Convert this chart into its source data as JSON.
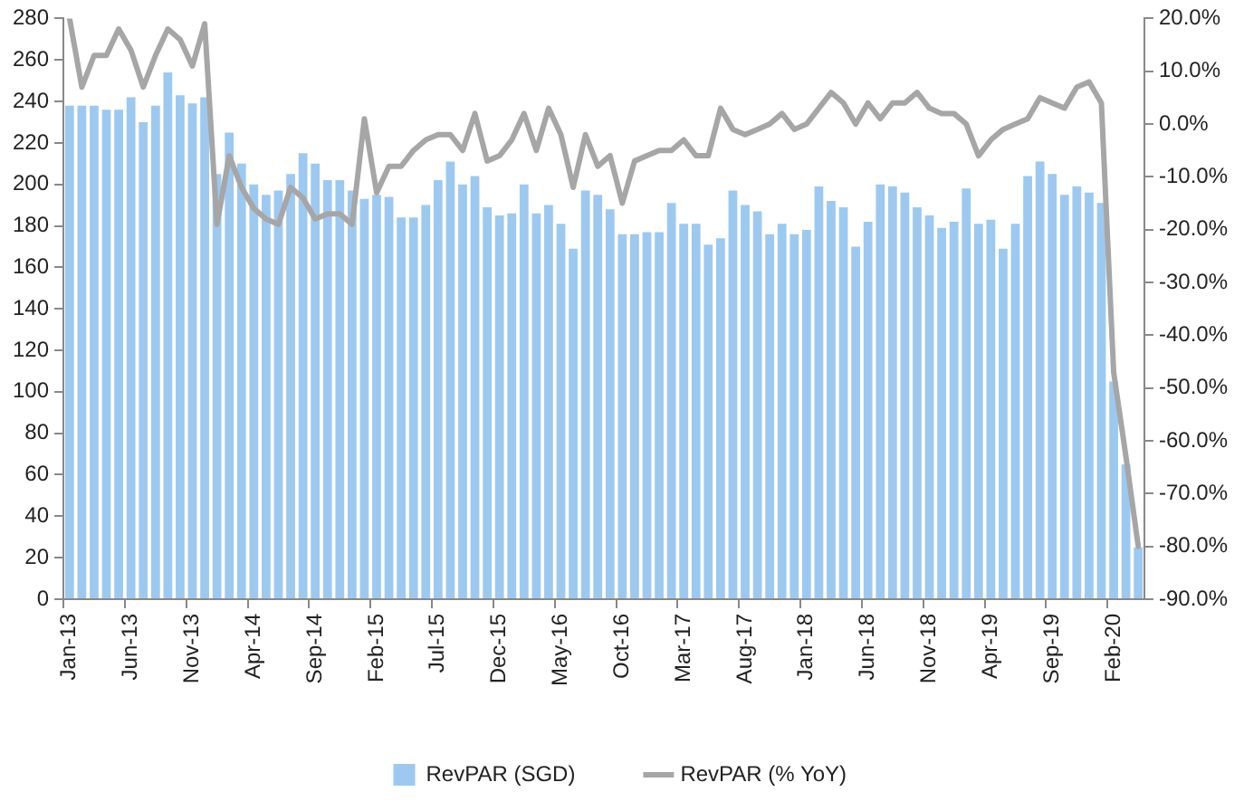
{
  "chart_data": {
    "type": "bar",
    "categories": [
      "Jan-13",
      null,
      null,
      null,
      null,
      "Jun-13",
      null,
      null,
      null,
      null,
      "Nov-13",
      null,
      null,
      null,
      null,
      "Apr-14",
      null,
      null,
      null,
      null,
      "Sep-14",
      null,
      null,
      null,
      null,
      "Feb-15",
      null,
      null,
      null,
      null,
      "Jul-15",
      null,
      null,
      null,
      null,
      "Dec-15",
      null,
      null,
      null,
      null,
      "May-16",
      null,
      null,
      null,
      null,
      "Oct-16",
      null,
      null,
      null,
      null,
      "Mar-17",
      null,
      null,
      null,
      null,
      "Aug-17",
      null,
      null,
      null,
      null,
      "Jan-18",
      null,
      null,
      null,
      null,
      "Jun-18",
      null,
      null,
      null,
      null,
      "Nov-18",
      null,
      null,
      null,
      null,
      "Apr-19",
      null,
      null,
      null,
      null,
      "Sep-19",
      null,
      null,
      null,
      null,
      "Feb-20",
      null,
      null
    ],
    "series": [
      {
        "name": "RevPAR (SGD)",
        "color": "#9dc9f0",
        "values": [
          238,
          238,
          238,
          236,
          236,
          242,
          230,
          238,
          254,
          243,
          239,
          242,
          205,
          225,
          210,
          200,
          195,
          197,
          205,
          215,
          210,
          202,
          202,
          197,
          193,
          195,
          194,
          184,
          184,
          190,
          202,
          211,
          200,
          204,
          189,
          185,
          186,
          200,
          186,
          190,
          181,
          169,
          197,
          195,
          188,
          176,
          176,
          177,
          177,
          191,
          181,
          181,
          171,
          174,
          197,
          190,
          187,
          176,
          181,
          176,
          178,
          199,
          192,
          189,
          170,
          182,
          200,
          199,
          196,
          189,
          185,
          179,
          182,
          198,
          181,
          183,
          169,
          181,
          204,
          211,
          205,
          195,
          199,
          196,
          191,
          105,
          65,
          25
        ]
      },
      {
        "name": "RevPAR (% YoY)",
        "type": "line",
        "axis": "y2",
        "color": "#a6a6a6",
        "values": [
          20,
          7,
          13,
          13,
          18,
          14,
          7,
          13,
          18,
          16,
          11,
          19,
          -19,
          -6,
          -12,
          -16,
          -18,
          -19,
          -12,
          -14,
          -18,
          -17,
          -17,
          -19,
          1,
          -13,
          -8,
          -8,
          -5,
          -3,
          -2,
          -2,
          -5,
          2,
          -7,
          -6,
          -3,
          2,
          -5,
          3,
          -2,
          -12,
          -2,
          -8,
          -6,
          -15,
          -7,
          -6,
          -5,
          -5,
          -3,
          -6,
          -6,
          3,
          -1,
          -2,
          -1,
          0,
          2,
          -1,
          0,
          3,
          6,
          4,
          0,
          4,
          1,
          4,
          4,
          6,
          3,
          2,
          2,
          0,
          -6,
          -3,
          -1,
          0,
          1,
          5,
          4,
          3,
          7,
          8,
          4,
          -47,
          -63,
          -80
        ]
      }
    ],
    "ylim": [
      0,
      280
    ],
    "yticks": [
      0,
      20,
      40,
      60,
      80,
      100,
      120,
      140,
      160,
      180,
      200,
      220,
      240,
      260,
      280
    ],
    "y2lim": [
      -90,
      20
    ],
    "y2ticks": [
      {
        "value": -90,
        "label": "-90.0%"
      },
      {
        "value": -80,
        "label": "-80.0%"
      },
      {
        "value": -70,
        "label": "-70.0%"
      },
      {
        "value": -60,
        "label": "-60.0%"
      },
      {
        "value": -50,
        "label": "-50.0%"
      },
      {
        "value": -40,
        "label": "-40.0%"
      },
      {
        "value": -30,
        "label": "-30.0%"
      },
      {
        "value": -20,
        "label": "-20.0%"
      },
      {
        "value": -10,
        "label": "-10.0%"
      },
      {
        "value": 0,
        "label": "0.0%"
      },
      {
        "value": 10,
        "label": "10.0%"
      },
      {
        "value": 20,
        "label": "20.0%"
      }
    ],
    "grid": false,
    "legend": "bottom",
    "marker": "none",
    "line_style": "solid"
  }
}
